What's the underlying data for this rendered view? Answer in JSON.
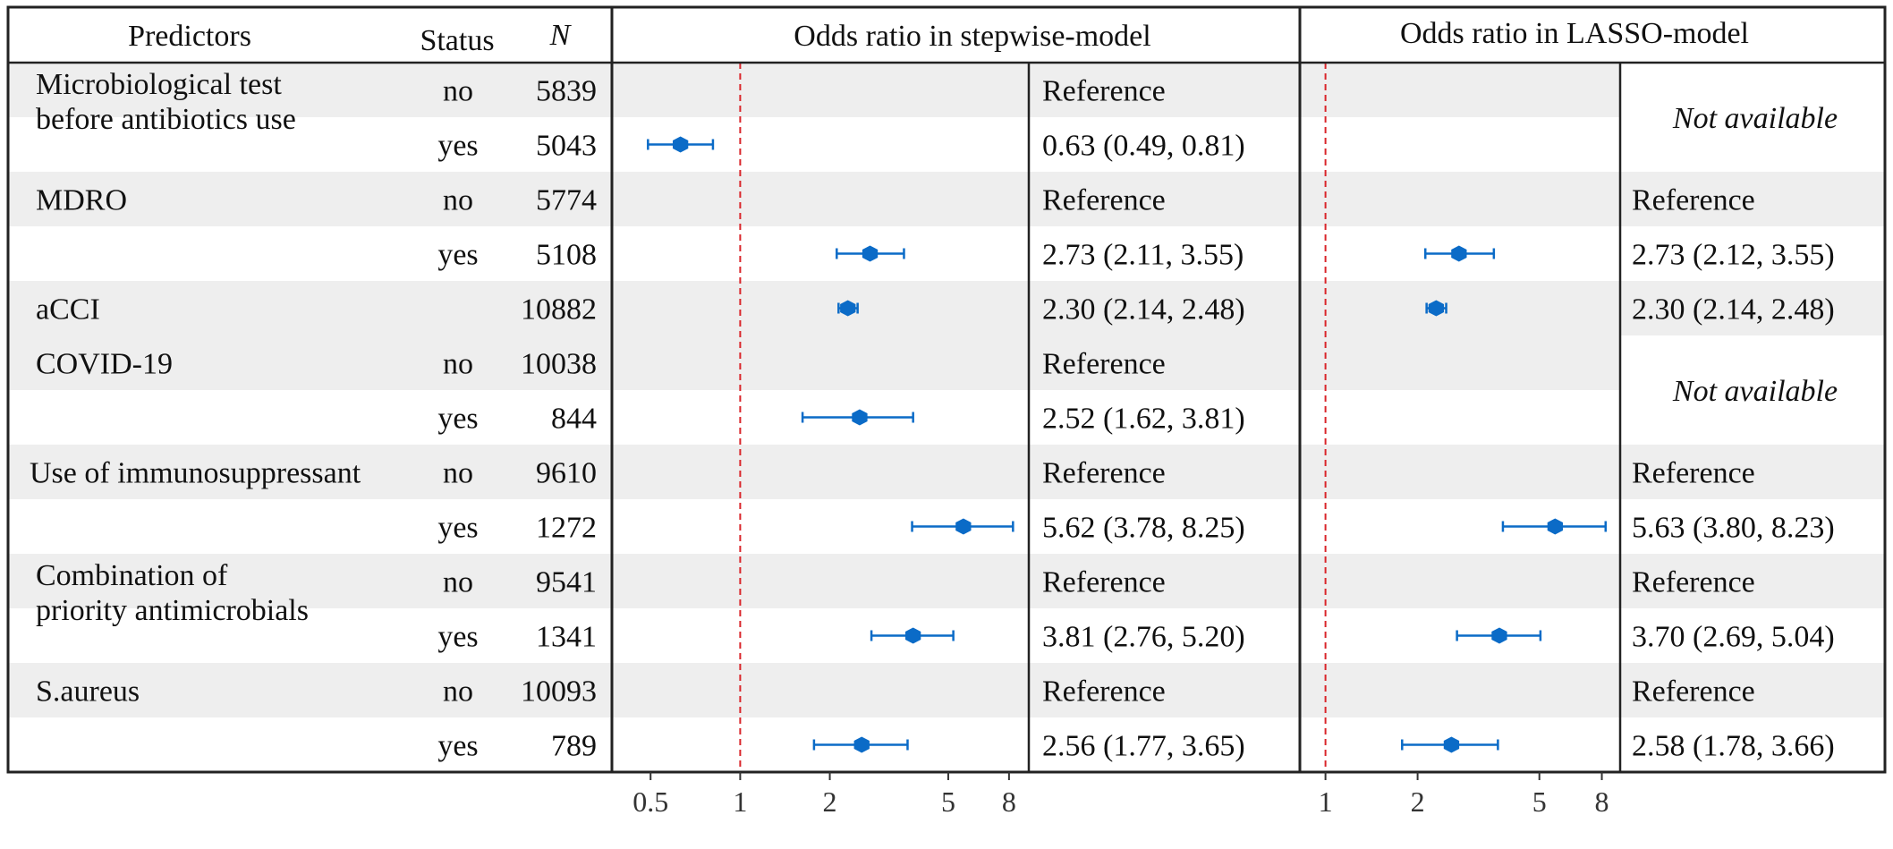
{
  "headers": {
    "predictors": "Predictors",
    "status": "Status",
    "n": "N",
    "stepwise": "Odds ratio in stepwise-model",
    "lasso": "Odds ratio in LASSO-model"
  },
  "colors": {
    "marker": "#0b6bc7",
    "reference_line": "#d9252a",
    "shade": "#eeeeee",
    "border": "#222222"
  },
  "chart_data": {
    "type": "forest",
    "scale": "log",
    "stepwise_axis": {
      "min": 0.45,
      "max": 8.7,
      "ticks": [
        0.5,
        1,
        2,
        5,
        8
      ],
      "tick_labels": [
        "0.5",
        "1",
        "2",
        "5",
        "8"
      ]
    },
    "lasso_axis": {
      "min": 0.95,
      "max": 8.7,
      "ticks": [
        1,
        2,
        5,
        8
      ],
      "tick_labels": [
        "1",
        "2",
        "5",
        "8"
      ]
    },
    "reference_value": 1,
    "rows": [
      {
        "predictor": "Microbiological test",
        "predictor_line2": "before antibiotics use",
        "status": "no",
        "n": "5839",
        "stepwise_text": "Reference",
        "stepwise": null,
        "lasso_text": "",
        "lasso": null
      },
      {
        "predictor": "",
        "status": "yes",
        "n": "5043",
        "stepwise_text": "0.63 (0.49, 0.81)",
        "stepwise": {
          "or": 0.63,
          "lo": 0.49,
          "hi": 0.81
        },
        "lasso_text": "",
        "lasso": null
      },
      {
        "predictor": "MDRO",
        "status": "no",
        "n": "5774",
        "stepwise_text": "Reference",
        "stepwise": null,
        "lasso_text": "Reference",
        "lasso": null
      },
      {
        "predictor": "",
        "status": "yes",
        "n": "5108",
        "stepwise_text": "2.73 (2.11, 3.55)",
        "stepwise": {
          "or": 2.73,
          "lo": 2.11,
          "hi": 3.55
        },
        "lasso_text": "2.73 (2.12, 3.55)",
        "lasso": {
          "or": 2.73,
          "lo": 2.12,
          "hi": 3.55
        }
      },
      {
        "predictor": "aCCI",
        "status": "",
        "n": "10882",
        "stepwise_text": "2.30 (2.14, 2.48)",
        "stepwise": {
          "or": 2.3,
          "lo": 2.14,
          "hi": 2.48
        },
        "lasso_text": "2.30 (2.14, 2.48)",
        "lasso": {
          "or": 2.3,
          "lo": 2.14,
          "hi": 2.48
        }
      },
      {
        "predictor": "COVID-19",
        "status": "no",
        "n": "10038",
        "stepwise_text": "Reference",
        "stepwise": null,
        "lasso_text": "",
        "lasso": null
      },
      {
        "predictor": "",
        "status": "yes",
        "n": "844",
        "stepwise_text": "2.52 (1.62, 3.81)",
        "stepwise": {
          "or": 2.52,
          "lo": 1.62,
          "hi": 3.81
        },
        "lasso_text": "",
        "lasso": null
      },
      {
        "predictor": "Use of immunosuppressant",
        "status": "no",
        "n": "9610",
        "stepwise_text": "Reference",
        "stepwise": null,
        "lasso_text": "Reference",
        "lasso": null
      },
      {
        "predictor": "",
        "status": "yes",
        "n": "1272",
        "stepwise_text": "5.62 (3.78, 8.25)",
        "stepwise": {
          "or": 5.62,
          "lo": 3.78,
          "hi": 8.25
        },
        "lasso_text": "5.63 (3.80, 8.23)",
        "lasso": {
          "or": 5.63,
          "lo": 3.8,
          "hi": 8.23
        }
      },
      {
        "predictor": "Combination of",
        "predictor_line2": "priority antimicrobials",
        "status": "no",
        "n": "9541",
        "stepwise_text": "Reference",
        "stepwise": null,
        "lasso_text": "Reference",
        "lasso": null
      },
      {
        "predictor": "",
        "status": "yes",
        "n": "1341",
        "stepwise_text": "3.81 (2.76, 5.20)",
        "stepwise": {
          "or": 3.81,
          "lo": 2.76,
          "hi": 5.2
        },
        "lasso_text": "3.70 (2.69, 5.04)",
        "lasso": {
          "or": 3.7,
          "lo": 2.69,
          "hi": 5.04
        }
      },
      {
        "predictor": "S.aureus",
        "status": "no",
        "n": "10093",
        "stepwise_text": "Reference",
        "stepwise": null,
        "lasso_text": "Reference",
        "lasso": null
      },
      {
        "predictor": "",
        "status": "yes",
        "n": "789",
        "stepwise_text": "2.56 (1.77, 3.65)",
        "stepwise": {
          "or": 2.56,
          "lo": 1.77,
          "hi": 3.65
        },
        "lasso_text": "2.58 (1.78, 3.66)",
        "lasso": {
          "or": 2.58,
          "lo": 1.78,
          "hi": 3.66
        }
      }
    ],
    "not_available": [
      {
        "text": "Not available",
        "rows": [
          0,
          1
        ]
      },
      {
        "text": "Not available",
        "rows": [
          5,
          6
        ]
      }
    ]
  }
}
